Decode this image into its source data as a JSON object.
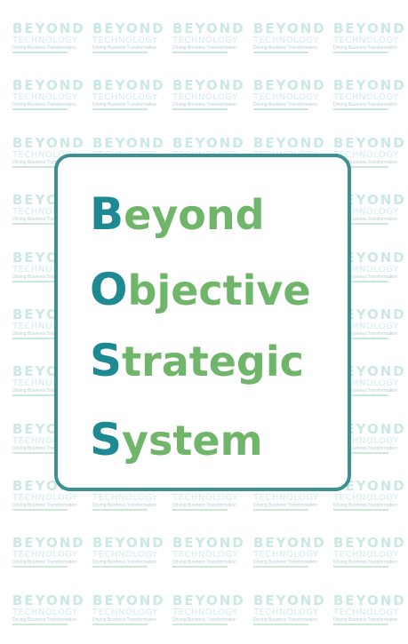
{
  "watermark": {
    "line1": "BEYOND",
    "line2": "TECHNOLOGY",
    "line3": "Driving Business Transformation"
  },
  "acronym": {
    "words": [
      {
        "first": "B",
        "rest": "eyond"
      },
      {
        "first": "O",
        "rest": "bjective"
      },
      {
        "first": "S",
        "rest": "trategic"
      },
      {
        "first": "S",
        "rest": "ystem"
      }
    ]
  },
  "colors": {
    "border": "#3d9194",
    "first_letter": "#1d8a93",
    "word_text": "#6fb56a",
    "watermark_text": "#9fd6ce"
  }
}
